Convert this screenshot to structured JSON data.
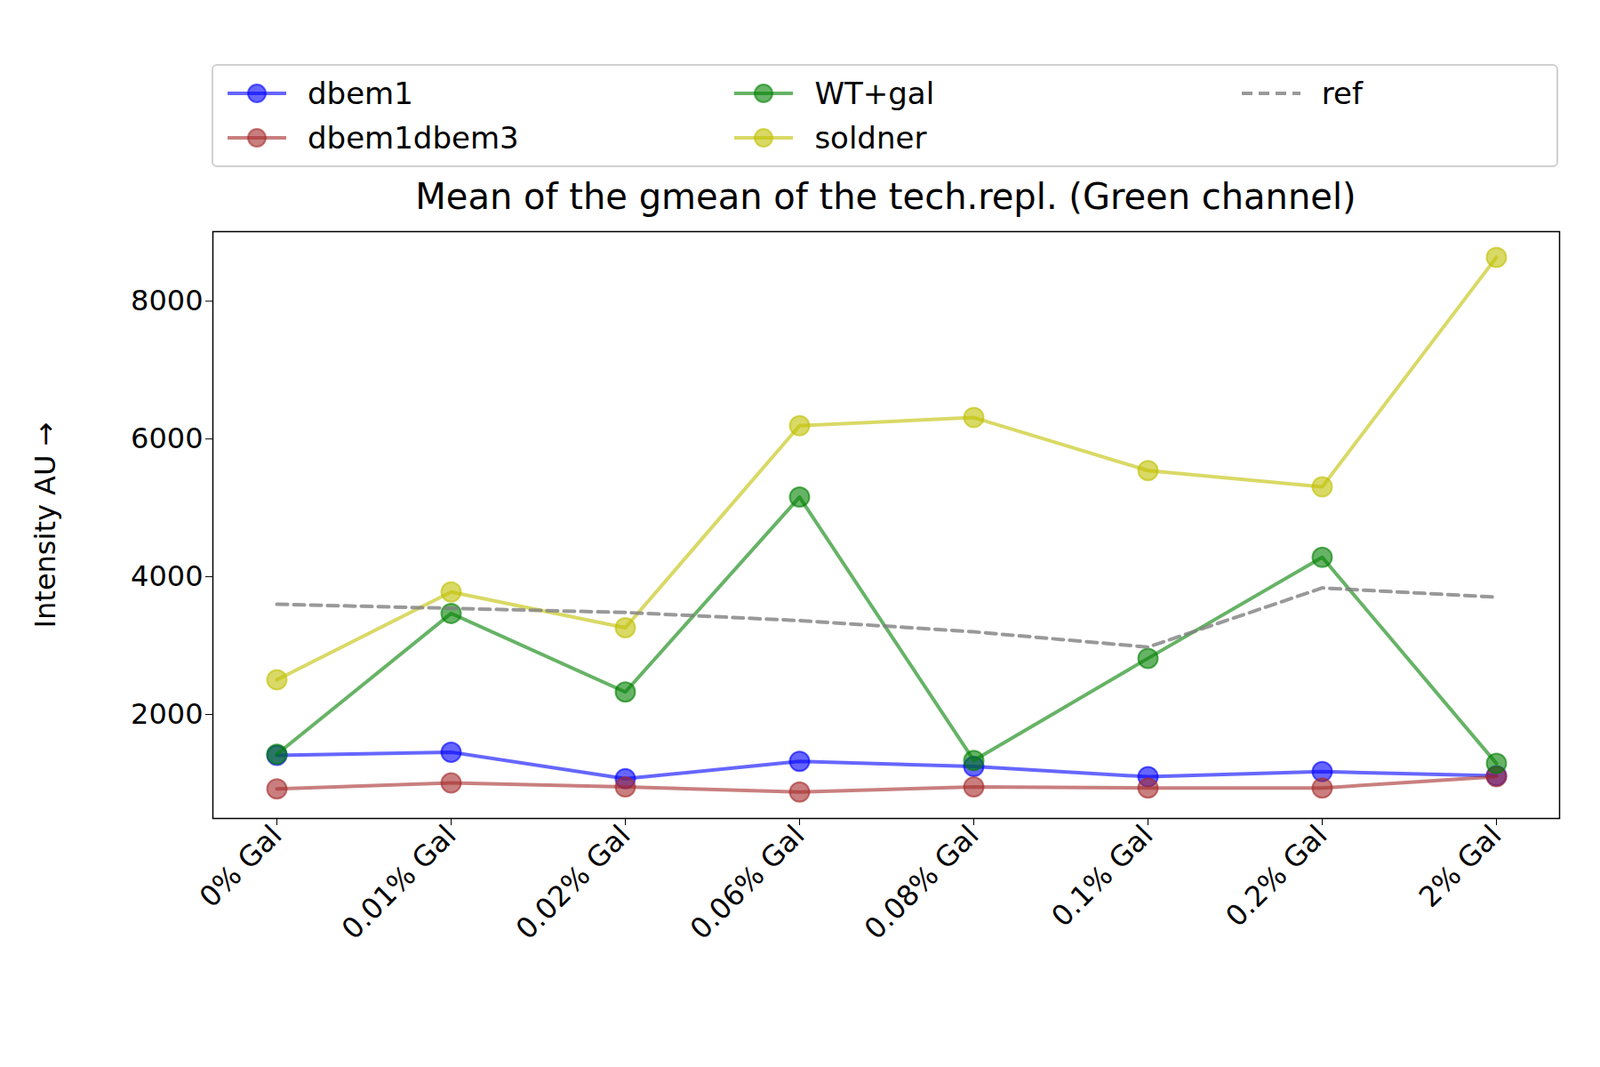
{
  "chart_data": {
    "type": "line",
    "title": "Mean of the gmean of the tech.repl. (Green channel)",
    "y_label": "Intensity AU",
    "categories": [
      "0% Gal",
      "0.01% Gal",
      "0.02% Gal",
      "0.06% Gal",
      "0.08% Gal",
      "0.1% Gal",
      "0.2% Gal",
      "2% Gal"
    ],
    "series": [
      {
        "name": "dbem1",
        "color": "#0000ff",
        "marker": "circle",
        "line_style": "solid",
        "values": [
          1407,
          1452,
          1067,
          1319,
          1244,
          1096,
          1170,
          1111
        ]
      },
      {
        "name": "dbem1dbem3",
        "color": "#a52a2a",
        "marker": "circle",
        "line_style": "solid",
        "values": [
          919,
          1007,
          948,
          874,
          948,
          933,
          933,
          1096
        ]
      },
      {
        "name": "WT+gal",
        "color": "#008000",
        "marker": "circle",
        "line_style": "solid",
        "values": [
          1422,
          3467,
          2326,
          5156,
          1333,
          2815,
          4281,
          1289
        ]
      },
      {
        "name": "soldner",
        "color": "#bfbf00",
        "marker": "circle",
        "line_style": "solid",
        "values": [
          2504,
          3778,
          3259,
          6193,
          6311,
          5541,
          5304,
          8637
        ]
      },
      {
        "name": "ref",
        "color": "#808080",
        "marker": "none",
        "line_style": "dashed",
        "values": [
          3600,
          3541,
          3481,
          3363,
          3200,
          2978,
          3837,
          3704
        ]
      }
    ],
    "ylim": [
      490,
      9010
    ],
    "yticks": [
      2000,
      4000,
      6000,
      8000
    ],
    "grid": false,
    "legend": "top"
  }
}
